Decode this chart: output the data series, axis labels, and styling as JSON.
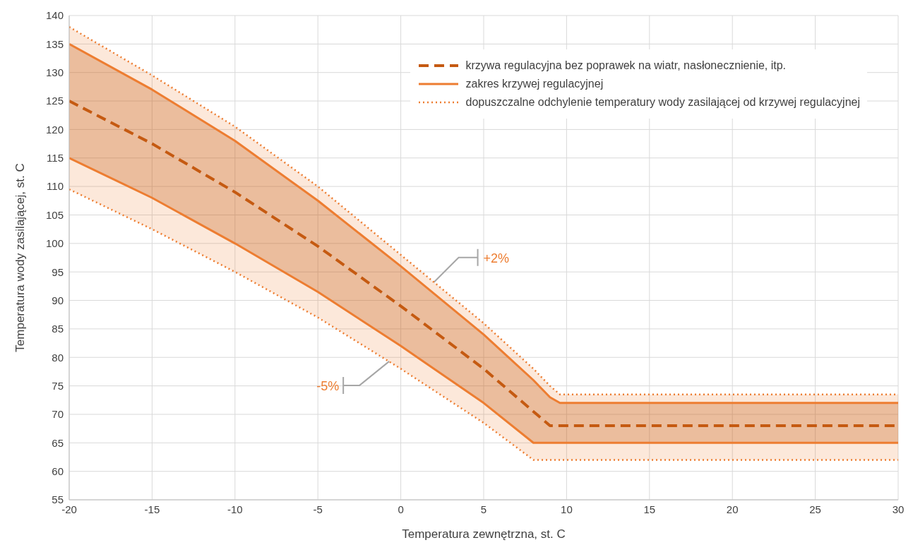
{
  "chart_data": {
    "type": "line",
    "xlabel": "Temperatura zewnętrzna, st. C",
    "ylabel": "Temperatura wody zasilającej, st. C",
    "x": [
      -20,
      -15,
      -10,
      -5,
      0,
      5,
      8,
      9,
      9.6,
      30
    ],
    "series": [
      {
        "name": "krzywa regulacyjna bez poprawek na wiatr, nasłonecznienie, itp.",
        "color": "#c55a11",
        "line_style": "dashed",
        "values": [
          125,
          117.5,
          109,
          99.5,
          89,
          78,
          70.5,
          68,
          68,
          68
        ],
        "lower": [
          115,
          108,
          100,
          91.5,
          82,
          72,
          65,
          65,
          65,
          65
        ],
        "upper": [
          135,
          127,
          118,
          107.5,
          96,
          84,
          76,
          73,
          72,
          72
        ]
      },
      {
        "name": "zakres krzywej regulacyjnej",
        "color": "#ed7d31",
        "line_style": "solid",
        "values": [
          135,
          127,
          118,
          107.5,
          96,
          84,
          76,
          73,
          72,
          72
        ],
        "lower": [
          109.5,
          102.5,
          95,
          87,
          78,
          68.5,
          62,
          62,
          62,
          62
        ],
        "upper": [
          138,
          129.5,
          120.5,
          110,
          98,
          86,
          78,
          75,
          73.5,
          73.5
        ]
      },
      {
        "color": "#ed7d31",
        "line_style": "solid",
        "values": [
          115,
          108,
          100,
          91.5,
          82,
          72,
          65,
          65,
          65,
          65
        ]
      },
      {
        "name": "dopuszczalne odchylenie temperatury wody zasilającej od krzywej regulacyjnej",
        "color": "#ed7d31",
        "line_style": "dotted",
        "values": [
          138,
          129.5,
          120.5,
          110,
          98,
          86,
          78,
          75,
          73.5,
          73.5
        ]
      },
      {
        "color": "#ed7d31",
        "line_style": "dotted",
        "values": [
          109.5,
          102.5,
          95,
          87,
          78,
          68.5,
          62,
          62,
          62,
          62
        ]
      }
    ],
    "annotations": [
      {
        "text": "+2%",
        "x": 2,
        "y": 93.2
      },
      {
        "text": "-5%",
        "x": -0.7,
        "y": 79.3
      }
    ],
    "xlim": [
      -20,
      30
    ],
    "xticks": [
      -20,
      -15,
      -10,
      -5,
      0,
      5,
      10,
      15,
      20,
      25,
      30
    ],
    "ylim": [
      55,
      140
    ],
    "yticks": [
      55,
      60,
      65,
      70,
      75,
      80,
      85,
      90,
      95,
      100,
      105,
      110,
      115,
      120,
      125,
      130,
      135,
      140
    ],
    "grid": true,
    "legend": "top right"
  }
}
